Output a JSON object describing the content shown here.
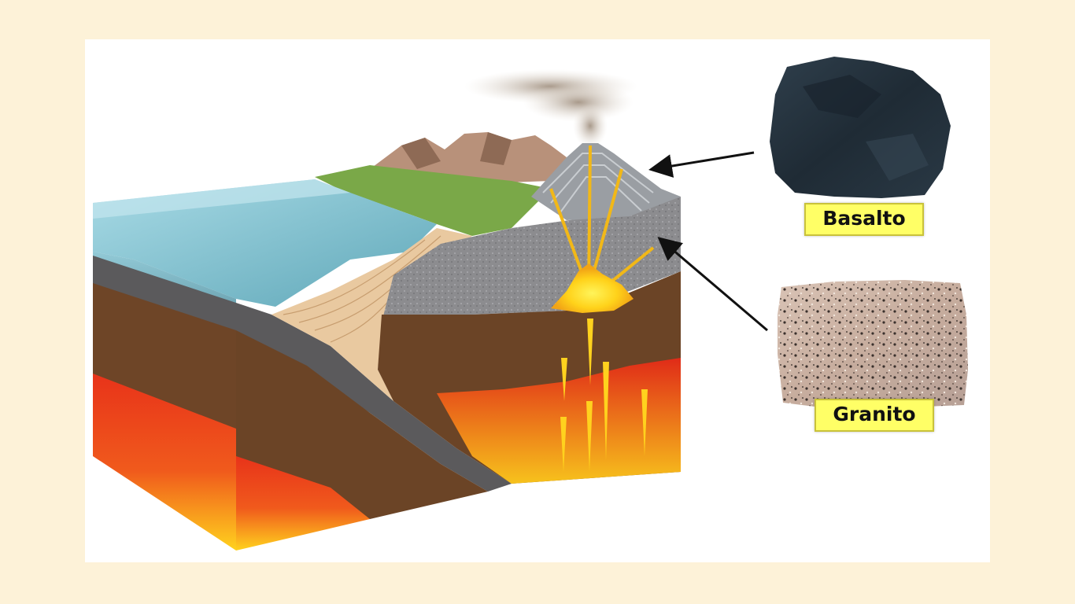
{
  "labels": {
    "basalt": "Basalto",
    "granite": "Granito"
  },
  "colors": {
    "background": "#fdf2d8",
    "label_fill": "#ffff66",
    "magma": "#e8331a",
    "mantle": "#6e4527"
  },
  "illustration": {
    "subject": "subduction-zone-cross-section",
    "rocks": [
      "basalt-sample",
      "granite-sample"
    ]
  }
}
